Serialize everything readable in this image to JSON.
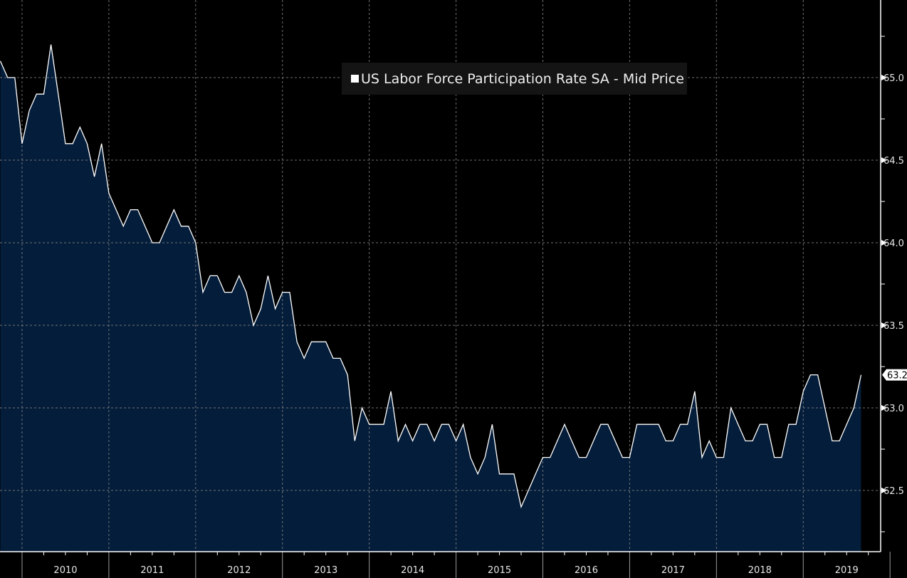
{
  "chart_data": {
    "type": "area",
    "title": "",
    "legend": [
      {
        "label": "US Labor Force Participation Rate SA - Mid Price",
        "color": "#ffffff"
      }
    ],
    "legend_placement": "top-center",
    "x_start": "2009-10",
    "x_step": "month",
    "x_tick_labels": [
      "2010",
      "2011",
      "2012",
      "2013",
      "2014",
      "2015",
      "2016",
      "2017",
      "2018",
      "2019"
    ],
    "y_tick_labels": [
      "62.5",
      "63.0",
      "63.5",
      "64.0",
      "64.5",
      "65.0"
    ],
    "y_ticks": [
      62.5,
      63.0,
      63.5,
      64.0,
      64.5,
      65.0
    ],
    "ylim": [
      62.13,
      65.47
    ],
    "grid": true,
    "last_value_label": "63.2",
    "series": [
      {
        "name": "US Labor Force Participation Rate SA - Mid Price",
        "line_color": "#ffffff",
        "fill_color": "#041d3a",
        "values": [
          65.1,
          65.0,
          65.0,
          64.6,
          64.8,
          64.9,
          64.9,
          65.2,
          64.9,
          64.6,
          64.6,
          64.7,
          64.6,
          64.4,
          64.6,
          64.3,
          64.2,
          64.1,
          64.2,
          64.2,
          64.1,
          64.0,
          64.0,
          64.1,
          64.2,
          64.1,
          64.1,
          64.0,
          63.7,
          63.8,
          63.8,
          63.7,
          63.7,
          63.8,
          63.7,
          63.5,
          63.6,
          63.8,
          63.6,
          63.7,
          63.7,
          63.4,
          63.3,
          63.4,
          63.4,
          63.4,
          63.3,
          63.3,
          63.2,
          62.8,
          63.0,
          62.9,
          62.9,
          62.9,
          63.1,
          62.8,
          62.9,
          62.8,
          62.9,
          62.9,
          62.8,
          62.9,
          62.9,
          62.8,
          62.9,
          62.7,
          62.6,
          62.7,
          62.9,
          62.6,
          62.6,
          62.6,
          62.4,
          62.5,
          62.6,
          62.7,
          62.7,
          62.8,
          62.9,
          62.8,
          62.7,
          62.7,
          62.8,
          62.9,
          62.9,
          62.8,
          62.7,
          62.7,
          62.9,
          62.9,
          62.9,
          62.9,
          62.8,
          62.8,
          62.9,
          62.9,
          63.1,
          62.7,
          62.8,
          62.7,
          62.7,
          63.0,
          62.9,
          62.8,
          62.8,
          62.9,
          62.9,
          62.7,
          62.7,
          62.9,
          62.9,
          63.1,
          63.2,
          63.2,
          63.0,
          62.8,
          62.8,
          62.9,
          63.0,
          63.2
        ]
      }
    ]
  }
}
